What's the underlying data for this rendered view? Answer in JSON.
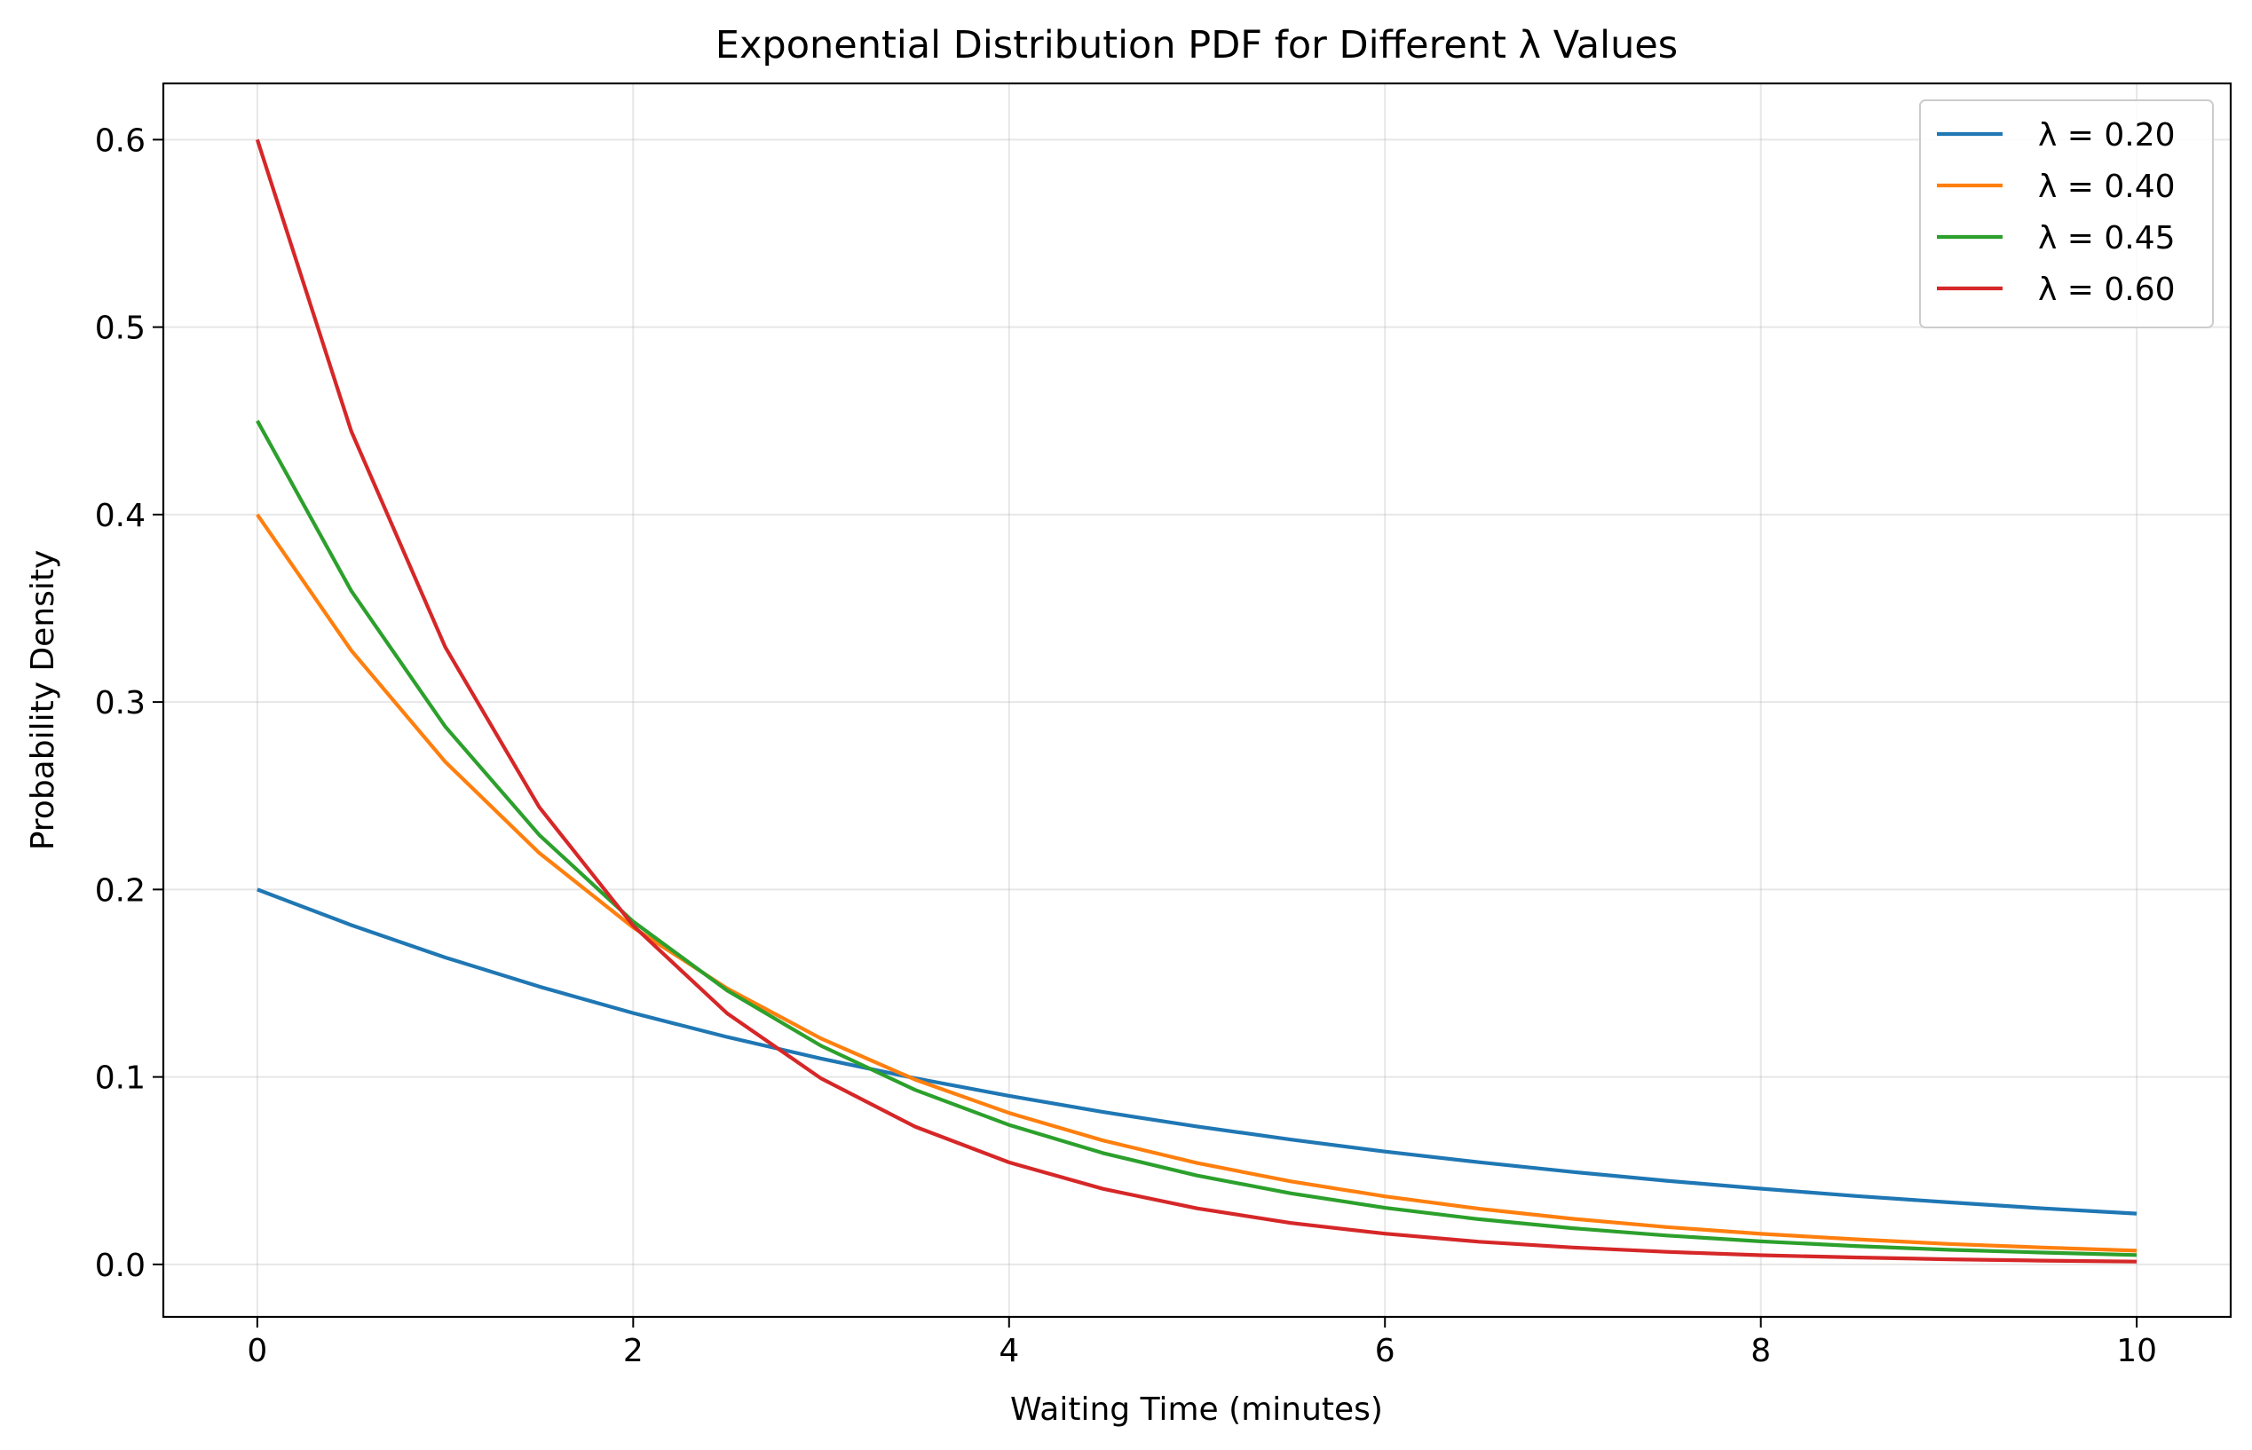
{
  "chart_data": {
    "type": "line",
    "title": "Exponential Distribution PDF for Different λ Values",
    "xlabel": "Waiting Time (minutes)",
    "ylabel": "Probability Density",
    "xlim": [
      -0.5,
      10.5
    ],
    "ylim": [
      -0.028,
      0.63
    ],
    "x_ticks": [
      0,
      2,
      4,
      6,
      8,
      10
    ],
    "x_tick_labels": [
      "0",
      "2",
      "4",
      "6",
      "8",
      "10"
    ],
    "y_ticks": [
      0.0,
      0.1,
      0.2,
      0.3,
      0.4,
      0.5,
      0.6
    ],
    "y_tick_labels": [
      "0.0",
      "0.1",
      "0.2",
      "0.3",
      "0.4",
      "0.5",
      "0.6"
    ],
    "grid": true,
    "legend_position": "top-right",
    "x": [
      0,
      0.5,
      1,
      1.5,
      2,
      2.5,
      3,
      3.5,
      4,
      4.5,
      5,
      5.5,
      6,
      6.5,
      7,
      7.5,
      8,
      8.5,
      9,
      9.5,
      10
    ],
    "series": [
      {
        "name": "λ = 0.20",
        "color": "#1f77b4",
        "values": [
          0.2,
          0.181,
          0.1637,
          0.1482,
          0.1341,
          0.1213,
          0.1098,
          0.0993,
          0.0899,
          0.0813,
          0.0736,
          0.0666,
          0.0602,
          0.0545,
          0.0493,
          0.0446,
          0.0404,
          0.0365,
          0.0331,
          0.0299,
          0.0271
        ]
      },
      {
        "name": "λ = 0.40",
        "color": "#ff7f0e",
        "values": [
          0.4,
          0.3275,
          0.2681,
          0.2195,
          0.1797,
          0.1472,
          0.1205,
          0.0986,
          0.0808,
          0.0661,
          0.0541,
          0.0443,
          0.0363,
          0.0297,
          0.0243,
          0.0199,
          0.0163,
          0.0134,
          0.0109,
          0.009,
          0.0073
        ]
      },
      {
        "name": "λ = 0.45",
        "color": "#2ca02c",
        "values": [
          0.45,
          0.3593,
          0.2869,
          0.2291,
          0.1829,
          0.1461,
          0.1166,
          0.0931,
          0.0744,
          0.0594,
          0.0474,
          0.0379,
          0.0302,
          0.0241,
          0.0193,
          0.0154,
          0.0123,
          0.0098,
          0.0078,
          0.0063,
          0.005
        ]
      },
      {
        "name": "λ = 0.60",
        "color": "#d62728",
        "values": [
          0.6,
          0.4445,
          0.3293,
          0.2439,
          0.1807,
          0.1339,
          0.0992,
          0.0735,
          0.0544,
          0.0403,
          0.0299,
          0.0221,
          0.0164,
          0.0121,
          0.009,
          0.0067,
          0.0049,
          0.0037,
          0.0027,
          0.002,
          0.0015
        ]
      }
    ]
  }
}
